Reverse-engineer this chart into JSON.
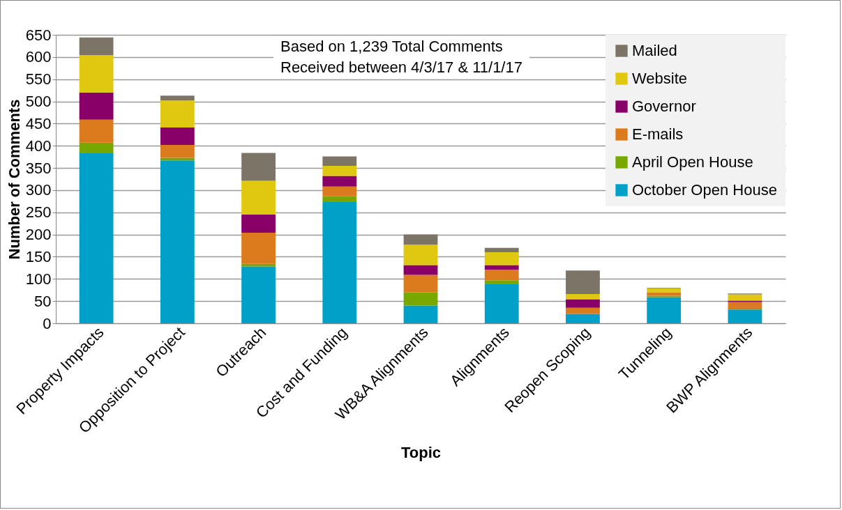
{
  "chart_data": {
    "type": "bar",
    "stacked": true,
    "xlabel": "Topic",
    "ylabel": "Number of Comments",
    "categories": [
      "Property Impacts",
      "Opposition to Project",
      "Outreach",
      "Cost and Funding",
      "WB&A Alignments",
      "Alignments",
      "Reopen Scoping",
      "Tunneling",
      "BWP Alignments"
    ],
    "series": [
      {
        "name": "October Open House",
        "color": "#00a0c8",
        "values": [
          383,
          367,
          128,
          273,
          40,
          88,
          21,
          59,
          31
        ]
      },
      {
        "name": "April Open House",
        "color": "#76a800",
        "values": [
          24,
          6,
          6,
          13,
          30,
          9,
          0,
          3,
          2
        ]
      },
      {
        "name": "E-mails",
        "color": "#dc7a1e",
        "values": [
          52,
          29,
          70,
          22,
          39,
          24,
          14,
          8,
          15
        ]
      },
      {
        "name": "Governor",
        "color": "#880068",
        "values": [
          61,
          39,
          41,
          24,
          22,
          10,
          19,
          0,
          3
        ]
      },
      {
        "name": "Website",
        "color": "#e0c810",
        "values": [
          84,
          61,
          76,
          23,
          46,
          29,
          12,
          9,
          14
        ]
      },
      {
        "name": "Mailed",
        "color": "#7d7468",
        "values": [
          40,
          11,
          63,
          21,
          23,
          10,
          53,
          1,
          2
        ]
      }
    ],
    "ylim": [
      0,
      650
    ],
    "yticks": [
      0,
      50,
      100,
      150,
      200,
      250,
      300,
      350,
      400,
      450,
      500,
      550,
      600,
      650
    ],
    "grid": "y",
    "legend": "top right",
    "annotations": [
      "Based on 1,239 Total Comments\nReceived between 4/3/17 & 11/1/17"
    ]
  }
}
